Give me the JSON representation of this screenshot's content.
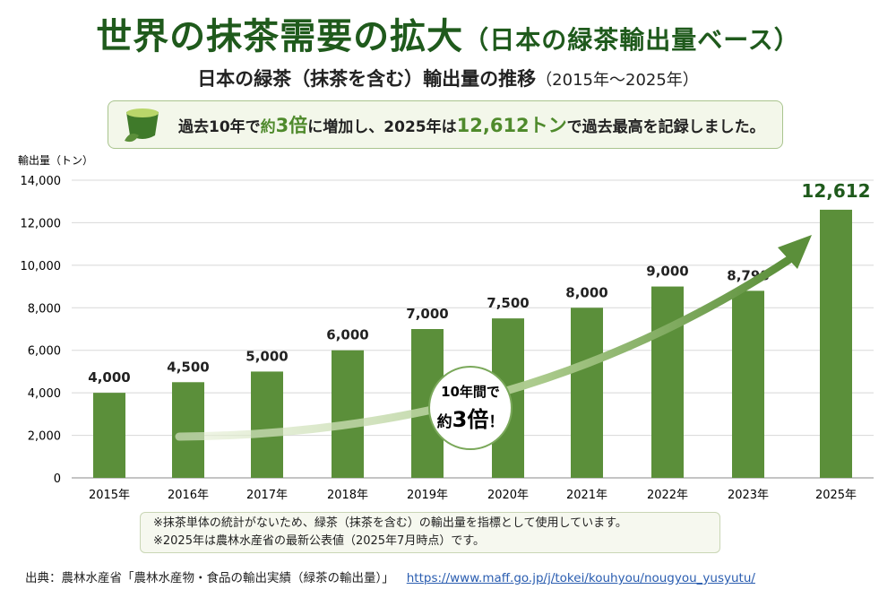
{
  "title": {
    "main": "世界の抹茶需要の拡大",
    "sub": "（日本の緑茶輸出量ベース）"
  },
  "subtitle": {
    "main": "日本の緑茶（抹茶を含む）輸出量の推移",
    "years": "（2015年〜2025年）"
  },
  "callout": {
    "p1": "過去10年で",
    "p2": "約",
    "p3": "3倍",
    "p4": "に増加し、2025年は",
    "p5": "12,612トン",
    "p6": "で過去最高を記録しました。"
  },
  "badge": {
    "line1": "10年間で",
    "line2a": "約",
    "line2b": "3倍",
    "line2c": "！"
  },
  "colors": {
    "bar": "#5b8f3a",
    "title": "#1f5a1c",
    "accent": "#4f8a2c"
  },
  "chart_data": {
    "type": "bar",
    "title": "日本の緑茶（抹茶を含む）輸出量の推移",
    "ylabel": "輸出量（トン）",
    "xlabel": "",
    "ylim": [
      0,
      14000
    ],
    "yticks": [
      "0",
      "2,000",
      "4,000",
      "6,000",
      "8,000",
      "10,000",
      "12,000",
      "14,000"
    ],
    "grid": true,
    "categories": [
      "2015年",
      "2016年",
      "2017年",
      "2018年",
      "2019年",
      "2020年",
      "2021年",
      "2022年",
      "2023年",
      "2025年"
    ],
    "values": [
      4000,
      4500,
      5000,
      6000,
      7000,
      7500,
      8000,
      9000,
      8798,
      12612
    ],
    "labels": [
      "4,000",
      "4,500",
      "5,000",
      "6,000",
      "7,000",
      "7,500",
      "8,000",
      "9,000",
      "8,798",
      "12,612"
    ]
  },
  "notes": [
    "※抹茶単体の統計がないため、緑茶（抹茶を含む）の輸出量を指標として使用しています。",
    "※2025年は農林水産省の最新公表値（2025年7月時点）です。"
  ],
  "source": {
    "label": "出典：農林水産省「農林水産物・食品の輸出実績（緑茶の輸出量）」",
    "url": "https://www.maff.go.jp/j/tokei/kouhyou/nougyou_yusyutu/"
  }
}
